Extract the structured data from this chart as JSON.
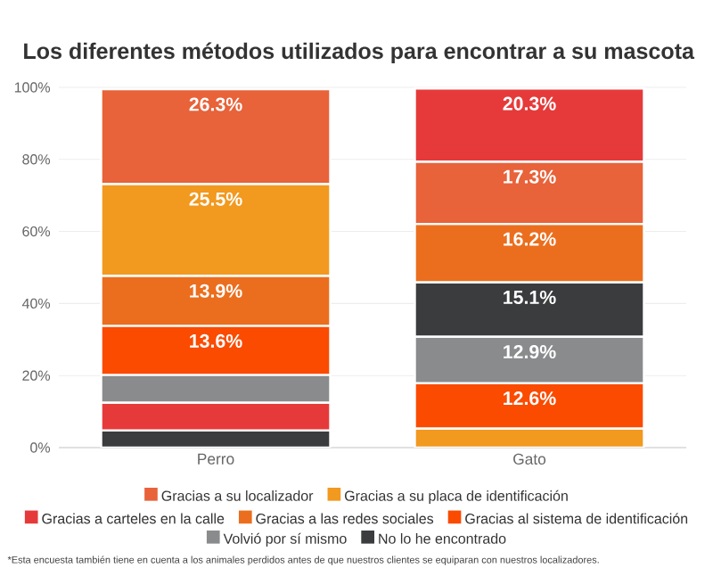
{
  "chart_data": {
    "type": "bar",
    "stacked": true,
    "title": "Los diferentes métodos utilizados para encontrar a su mascota",
    "categories": [
      "Perro",
      "Gato"
    ],
    "series": [
      {
        "name": "Gracias a su localizador",
        "color": "#e8623a",
        "values": [
          26.3,
          17.3
        ],
        "value_labels": [
          "26.3%",
          "17.3%"
        ]
      },
      {
        "name": "Gracias a su placa de identificación",
        "color": "#f2991f",
        "values": [
          25.5,
          5.3
        ],
        "value_labels": [
          "25.5%",
          null
        ]
      },
      {
        "name": "Gracias a carteles en la calle",
        "color": "#e63a3a",
        "values": [
          7.7,
          20.3
        ],
        "value_labels": [
          null,
          "20.3%"
        ]
      },
      {
        "name": "Gracias a las redes sociales",
        "color": "#eb6e1e",
        "values": [
          13.9,
          16.2
        ],
        "value_labels": [
          "13.9%",
          "16.2%"
        ]
      },
      {
        "name": "Gracias al sistema de identificación",
        "color": "#fa4b00",
        "values": [
          13.6,
          12.6
        ],
        "value_labels": [
          "13.6%",
          "12.6%"
        ]
      },
      {
        "name": "Volvió por sí mismo",
        "color": "#898b8c",
        "values": [
          7.7,
          12.9
        ],
        "value_labels": [
          null,
          "12.9%"
        ]
      },
      {
        "name": "No lo he encontrado",
        "color": "#3a3c3e",
        "values": [
          4.8,
          15.1
        ],
        "value_labels": [
          null,
          "15.1%"
        ]
      }
    ],
    "ylim": [
      0,
      100
    ],
    "yticks": [
      {
        "value": 0,
        "label": "0%"
      },
      {
        "value": 20,
        "label": "20%"
      },
      {
        "value": 40,
        "label": "40%"
      },
      {
        "value": 60,
        "label": "60%"
      },
      {
        "value": 80,
        "label": "80%"
      },
      {
        "value": 100,
        "label": "100%"
      }
    ],
    "grid": "y",
    "legend": "bottom",
    "annotations": [
      "*Esta encuesta también tiene en cuenta a los animales perdidos antes de que nuestros clientes se equiparan con nuestros localizadores."
    ]
  }
}
